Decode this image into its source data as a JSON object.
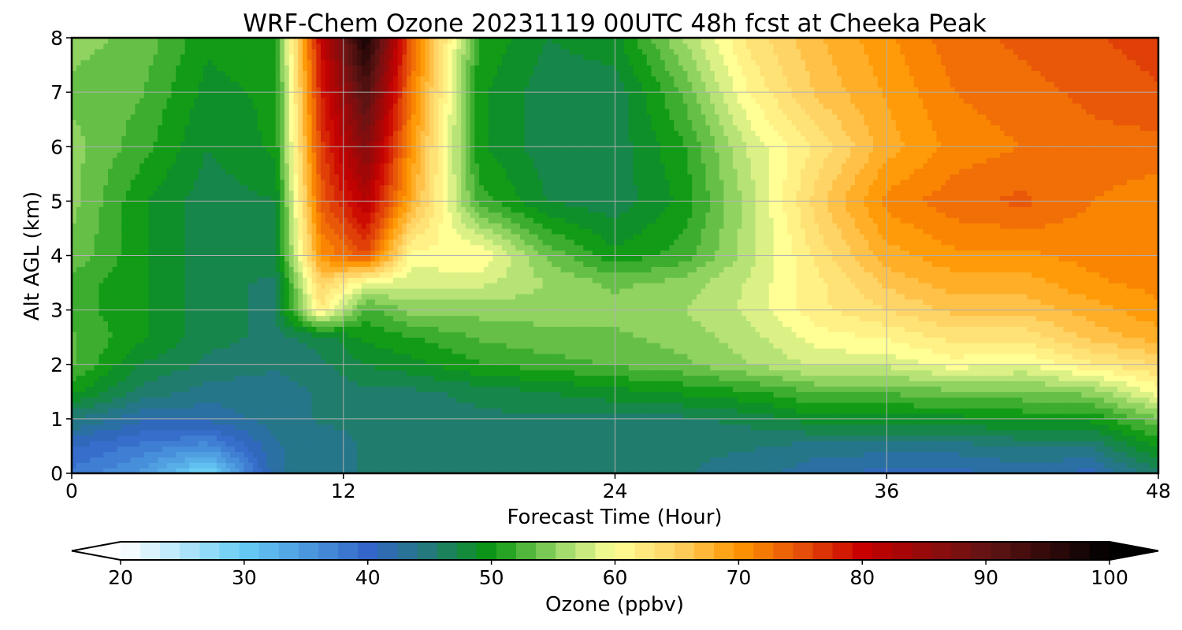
{
  "chart_data": {
    "type": "heatmap",
    "title": "WRF-Chem Ozone  20231119 00UTC 48h fcst at Cheeka Peak",
    "xlabel": "Forecast Time (Hour)",
    "ylabel": "Alt AGL (km)",
    "xlim": [
      0,
      48
    ],
    "ylim": [
      0,
      8
    ],
    "x_ticks": [
      "0",
      "12",
      "24",
      "36",
      "48"
    ],
    "x_tick_values": [
      0,
      12,
      24,
      36,
      48
    ],
    "y_ticks": [
      "0",
      "1",
      "2",
      "3",
      "4",
      "5",
      "6",
      "7",
      "8"
    ],
    "y_tick_values": [
      0,
      1,
      2,
      3,
      4,
      5,
      6,
      7,
      8
    ],
    "grid": true,
    "colorbar": {
      "label": "Ozone  (ppbv)",
      "range": [
        20,
        100
      ],
      "ticks": [
        "20",
        "30",
        "40",
        "50",
        "60",
        "70",
        "80",
        "90",
        "100"
      ],
      "tick_values": [
        20,
        30,
        40,
        50,
        60,
        70,
        80,
        90,
        100
      ],
      "extend": "both",
      "placement": "bottom",
      "color_stops": [
        {
          "v": 20,
          "c": "#ffffff"
        },
        {
          "v": 30,
          "c": "#66ccf5"
        },
        {
          "v": 40,
          "c": "#3366c8"
        },
        {
          "v": 45,
          "c": "#237a7a"
        },
        {
          "v": 50,
          "c": "#089610"
        },
        {
          "v": 56,
          "c": "#a5dc6e"
        },
        {
          "v": 60,
          "c": "#ffff96"
        },
        {
          "v": 65,
          "c": "#ffd264"
        },
        {
          "v": 70,
          "c": "#ff9600"
        },
        {
          "v": 75,
          "c": "#e6500a"
        },
        {
          "v": 80,
          "c": "#c80000"
        },
        {
          "v": 90,
          "c": "#641414"
        },
        {
          "v": 100,
          "c": "#000000"
        }
      ]
    },
    "hours": [
      0,
      3,
      6,
      9,
      11,
      13,
      15,
      18,
      21,
      24,
      27,
      30,
      33,
      36,
      39,
      42,
      45,
      48
    ],
    "altitudes_km": [
      0,
      0.5,
      1,
      1.5,
      2,
      2.5,
      3,
      3.5,
      4,
      5,
      6,
      7,
      8
    ],
    "values_ppbv": [
      [
        38,
        35,
        28,
        43,
        44,
        45,
        45,
        45,
        45,
        45,
        45,
        44,
        42,
        41,
        41,
        42,
        41,
        46
      ],
      [
        40,
        38,
        36,
        43,
        44,
        45,
        45,
        45,
        45,
        45,
        45,
        45,
        44,
        44,
        44,
        45,
        45,
        50
      ],
      [
        45,
        42,
        42,
        44,
        45,
        45,
        45,
        46,
        46,
        46,
        46,
        47,
        49,
        49,
        49,
        50,
        50,
        54
      ],
      [
        50,
        46,
        44,
        44,
        45,
        46,
        46,
        47,
        48,
        49,
        50,
        51,
        53,
        53,
        54,
        54,
        55,
        60
      ],
      [
        53,
        48,
        46,
        45,
        46,
        48,
        49,
        51,
        52,
        53,
        54,
        56,
        58,
        58,
        60,
        59,
        62,
        64
      ],
      [
        53,
        50,
        47,
        46,
        47,
        50,
        51,
        53,
        54,
        54,
        55,
        57,
        60,
        61,
        63,
        63,
        66,
        68
      ],
      [
        52,
        50,
        47,
        46,
        62,
        52,
        55,
        55,
        55,
        55,
        56,
        58,
        62,
        64,
        66,
        66,
        68,
        70
      ],
      [
        52,
        50,
        47,
        46,
        65,
        59,
        58,
        58,
        56,
        54,
        55,
        58,
        62,
        66,
        68,
        68,
        70,
        71
      ],
      [
        54,
        50,
        47,
        48,
        70,
        75,
        60,
        61,
        54,
        50,
        52,
        57,
        63,
        68,
        70,
        70,
        71,
        72
      ],
      [
        55,
        50,
        47,
        48,
        74,
        82,
        68,
        52,
        48,
        47,
        50,
        57,
        65,
        71,
        73,
        74,
        72,
        71
      ],
      [
        55,
        52,
        48,
        50,
        76,
        87,
        70,
        50,
        47,
        47,
        51,
        58,
        63,
        68,
        71,
        72,
        73,
        73
      ],
      [
        54,
        53,
        49,
        50,
        78,
        92,
        72,
        50,
        47,
        47,
        53,
        61,
        66,
        69,
        72,
        73,
        74,
        75
      ],
      [
        55,
        54,
        50,
        51,
        80,
        98,
        74,
        51,
        48,
        49,
        56,
        63,
        67,
        70,
        73,
        74,
        75,
        76
      ]
    ]
  }
}
